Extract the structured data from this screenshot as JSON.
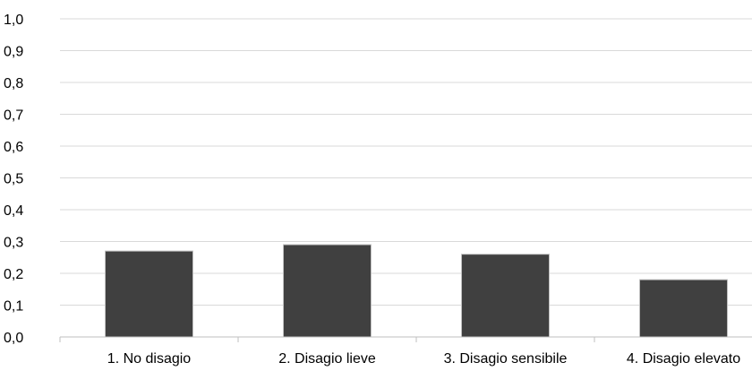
{
  "chart_data": {
    "type": "bar",
    "categories": [
      "1. No disagio",
      "2. Disagio lieve",
      "3. Disagio sensibile",
      "4. Disagio elevato"
    ],
    "values": [
      0.27,
      0.29,
      0.26,
      0.18
    ],
    "yticks": [
      "0,0",
      "0,1",
      "0,2",
      "0,3",
      "0,4",
      "0,5",
      "0,6",
      "0,7",
      "0,8",
      "0,9",
      "1,0"
    ],
    "ylim": [
      0,
      1
    ],
    "grid": true,
    "bar_color": "#404040",
    "grid_color": "#d9d9d9"
  }
}
